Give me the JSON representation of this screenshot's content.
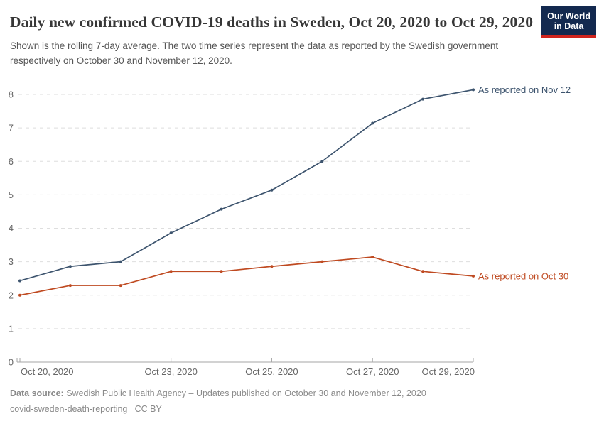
{
  "header": {
    "title": "Daily new confirmed COVID-19 deaths in Sweden, Oct 20, 2020 to Oct 29, 2020",
    "subtitle": "Shown is the rolling 7-day average. The two time series represent the data as reported by the Swedish government respectively on October 30 and November 12, 2020.",
    "logo": {
      "line1": "Our World",
      "line2": "in Data"
    }
  },
  "chart_data": {
    "type": "line",
    "x": [
      "Oct 20, 2020",
      "Oct 21, 2020",
      "Oct 22, 2020",
      "Oct 23, 2020",
      "Oct 24, 2020",
      "Oct 25, 2020",
      "Oct 26, 2020",
      "Oct 27, 2020",
      "Oct 28, 2020",
      "Oct 29, 2020"
    ],
    "series": [
      {
        "id": "nov12",
        "name": "As reported on Nov 12",
        "color": "#3D546E",
        "values": [
          2.43,
          2.86,
          3,
          3.86,
          4.57,
          5.14,
          6,
          7.14,
          7.86,
          8.14
        ]
      },
      {
        "id": "oct30",
        "name": "As reported on Oct 30",
        "color": "#BF4A21",
        "values": [
          2,
          2.29,
          2.29,
          2.71,
          2.71,
          2.86,
          3,
          3.14,
          2.71,
          2.57
        ]
      }
    ],
    "title": "Daily new confirmed COVID-19 deaths in Sweden, Oct 20, 2020 to Oct 29, 2020",
    "xlabel": "",
    "ylabel": "",
    "ylim": [
      0,
      8
    ],
    "yticks": [
      0,
      1,
      2,
      3,
      4,
      5,
      6,
      7,
      8
    ],
    "xtick_indices": [
      0,
      3,
      5,
      7,
      9
    ],
    "xtick_labels": [
      "Oct 20, 2020",
      "Oct 23, 2020",
      "Oct 25, 2020",
      "Oct 27, 2020",
      "Oct 29, 2020"
    ],
    "grid": true,
    "grid_style": "dashed-horizontal",
    "legend_position": "end-of-line-labels"
  },
  "footer": {
    "source_label": "Data source:",
    "source_text": " Swedish Public Health Agency – Updates published on October 30 and November 12, 2020",
    "link_text": "covid-sweden-death-reporting",
    "separator": " | ",
    "license_text": "CC BY"
  },
  "colors": {
    "series_blue": "#3D546E",
    "series_red": "#BF4A21",
    "grid": "#DEDEDE",
    "axis": "#A5A5A5",
    "tick_label": "#666666",
    "title": "#373737",
    "subtitle": "#565656",
    "footer": "#8A8A8A",
    "logo_bg": "#13294F",
    "logo_stripe": "#D0241E"
  }
}
